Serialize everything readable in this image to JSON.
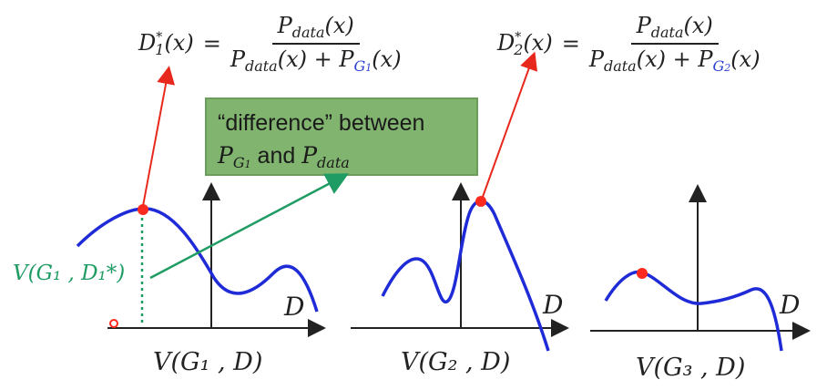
{
  "formulas": [
    {
      "lhs": "D",
      "lhs_sup": "*",
      "lhs_sub": "1",
      "lhs_arg": "(x)",
      "equals": "=",
      "numerator": "P",
      "numerator_sub": "data",
      "numerator_arg": "(x)",
      "denominator_a": "P",
      "denominator_a_sub": "data",
      "denominator_a_arg": "(x) + ",
      "denominator_b": "P",
      "denominator_b_sub": "G",
      "denominator_b_subsub": "1",
      "denominator_b_arg": "(x)"
    },
    {
      "lhs": "D",
      "lhs_sup": "*",
      "lhs_sub": "2",
      "lhs_arg": "(x)",
      "equals": "=",
      "numerator": "P",
      "numerator_sub": "data",
      "numerator_arg": "(x)",
      "denominator_a": "P",
      "denominator_a_sub": "data",
      "denominator_a_arg": "(x) + ",
      "denominator_b": "P",
      "denominator_b_sub": "G",
      "denominator_b_subsub": "2",
      "denominator_b_arg": "(x)"
    }
  ],
  "callout": {
    "line1": "“difference” between",
    "line2_a": "P",
    "line2_a_sub": "G",
    "line2_a_subsub": "1",
    "line2_mid": " and ",
    "line2_b": "P",
    "line2_b_sub": "data"
  },
  "plots": [
    {
      "axis_label": "V(G₁ , D)",
      "d_label": "D"
    },
    {
      "axis_label": "V(G₂ , D)",
      "d_label": "D"
    },
    {
      "axis_label": "V(G₃ , D)",
      "d_label": "D"
    }
  ],
  "value_label": "V(G₁ , D₁*)",
  "colors": {
    "curve": "#1f2bd6",
    "point": "#ff2a1f",
    "arrow_red": "#e8281c",
    "arrow_green": "#1f9c63",
    "callout_bg": "#80b46f"
  }
}
